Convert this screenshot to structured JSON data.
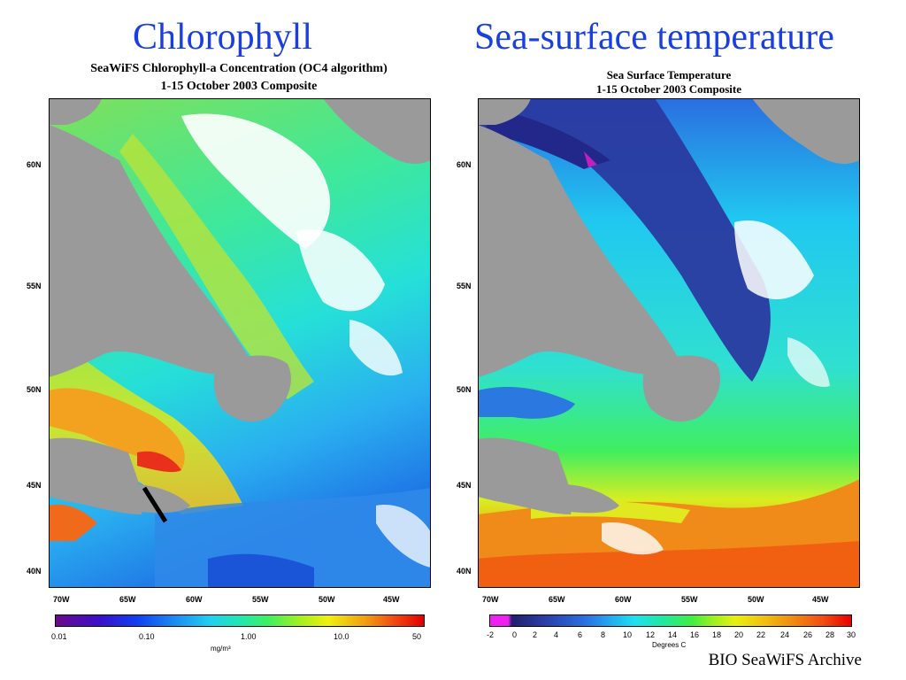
{
  "headings": {
    "left": "Chlorophyll",
    "right": "Sea-surface temperature"
  },
  "left_panel": {
    "title_line1": "SeaWiFS Chlorophyll-a Concentration (OC4 algorithm)",
    "title_line2": "1-15 October 2003 Composite",
    "lat_labels": [
      "60N",
      "55N",
      "50N",
      "45N",
      "40N"
    ],
    "lon_labels": [
      "70W",
      "65W",
      "60W",
      "55W",
      "50W",
      "45W"
    ],
    "colorbar_ticks": [
      "0.01",
      "0.10",
      "1.00",
      "10.0",
      "50"
    ],
    "colorbar_unit": "mg/m³"
  },
  "right_panel": {
    "title_line1": "Sea Surface Temperature",
    "title_line2": "1-15 October 2003 Composite",
    "lat_labels": [
      "60N",
      "55N",
      "50N",
      "45N",
      "40N"
    ],
    "lon_labels": [
      "70W",
      "65W",
      "60W",
      "55W",
      "50W",
      "45W"
    ],
    "colorbar_ticks": [
      "-2",
      "0",
      "2",
      "4",
      "6",
      "8",
      "10",
      "12",
      "14",
      "16",
      "18",
      "20",
      "22",
      "24",
      "26",
      "28",
      "30"
    ],
    "colorbar_unit": "Degrees C"
  },
  "credit": "BIO SeaWiFS Archive",
  "colors": {
    "heading_blue": "#1a3fe0",
    "land_gray": "#9a9a9a",
    "cloud_white": "#ffffff"
  }
}
